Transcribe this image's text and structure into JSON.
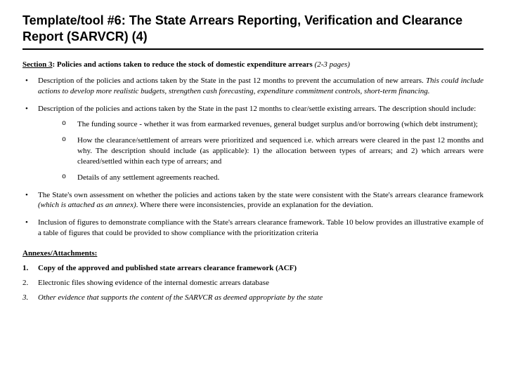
{
  "title": "Template/tool #6: The State Arrears Reporting, Verification and Clearance Report (SARVCR) (4)",
  "section3": {
    "label": "Section 3",
    "heading_rest": ": Policies and actions taken to reduce the stock of domestic expenditure arrears",
    "heading_note": " (2-3 pages)"
  },
  "bullets": {
    "b1_main": "Description of the policies and actions taken by the State in the past 12 months to prevent the accumulation of new arrears. ",
    "b1_italic": "This could include actions to develop more realistic budgets, strengthen cash forecasting, expenditure commitment controls, short-term financing.",
    "b2": "Description of the policies and actions taken by the State in the past 12 months to clear/settle existing arrears. The description should include:",
    "b2_sub1": "The funding source - whether it was from earmarked revenues, general budget surplus and/or borrowing (which debt instrument);",
    "b2_sub2": "How the clearance/settlement of arrears were prioritized and sequenced i.e. which arrears were cleared in the past 12 months and why. The description should include (as applicable): 1) the allocation between types of arrears; and 2) which arrears were cleared/settled within each type of arrears; and",
    "b2_sub3": "Details of any settlement agreements reached.",
    "b3_main": "The State's own assessment on whether the policies and actions taken by the state were consistent with the State's arrears clearance framework ",
    "b3_italic": "(which is attached as an annex)",
    "b3_tail": ". Where there were inconsistencies, provide an explanation for the deviation.",
    "b4": "Inclusion of figures to demonstrate compliance with the State's arrears clearance framework. Table 10 below provides an illustrative example of a table of figures that could be provided to show compliance with the prioritization criteria"
  },
  "annex": {
    "heading": "Annexes/Attachments:",
    "a1_num": "1.",
    "a1": "Copy of the approved and published state arrears clearance framework (ACF)",
    "a2_num": "2.",
    "a2": "Electronic files showing evidence of the internal domestic arrears database",
    "a3_num": "3.",
    "a3": "Other evidence that supports the content of the SARVCR as deemed appropriate by the state"
  },
  "colors": {
    "text": "#000000",
    "background": "#ffffff",
    "rule": "#000000"
  },
  "fonts": {
    "title_family": "Arial",
    "body_family": "Times New Roman",
    "title_size_pt": 18,
    "body_size_pt": 11
  }
}
